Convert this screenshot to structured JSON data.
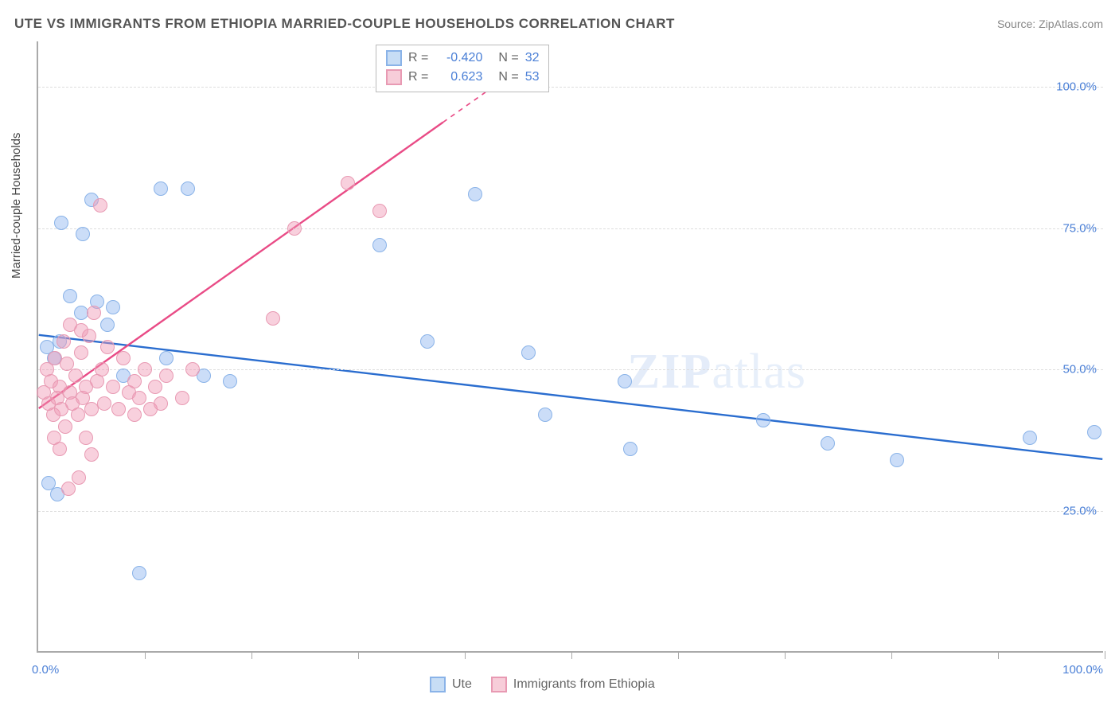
{
  "title": "UTE VS IMMIGRANTS FROM ETHIOPIA MARRIED-COUPLE HOUSEHOLDS CORRELATION CHART",
  "source_label": "Source:",
  "source_name": "ZipAtlas.com",
  "ylabel": "Married-couple Households",
  "watermark": {
    "zip": "ZIP",
    "atlas": "atlas"
  },
  "chart": {
    "type": "scatter-correlation",
    "xlim": [
      0,
      100
    ],
    "ylim": [
      0,
      108
    ],
    "x_ticks_minor": [
      10,
      20,
      30,
      40,
      50,
      60,
      70,
      80,
      90,
      100
    ],
    "y_gridlines": [
      25,
      50,
      75,
      100
    ],
    "y_tick_labels": [
      "25.0%",
      "50.0%",
      "75.0%",
      "100.0%"
    ],
    "x_tick_labels": {
      "left": "0.0%",
      "right": "100.0%"
    },
    "background_color": "#ffffff",
    "grid_color": "#dddddd",
    "axis_color": "#aaaaaa",
    "tick_label_color": "#4a7fd6",
    "series": [
      {
        "name": "Ute",
        "color_fill": "rgba(140,180,240,0.45)",
        "color_stroke": "#8ab3e8",
        "swatch_fill": "#c7ddf5",
        "swatch_border": "#8ab3e8",
        "line_color": "#2a6dcf",
        "line_width": 2.4,
        "R": "-0.420",
        "N": "32",
        "regression": {
          "x1": 0,
          "y1": 56,
          "x2": 100,
          "y2": 34
        },
        "points": [
          {
            "x": 1.0,
            "y": 30
          },
          {
            "x": 1.8,
            "y": 28
          },
          {
            "x": 0.8,
            "y": 54
          },
          {
            "x": 2.2,
            "y": 76
          },
          {
            "x": 4.2,
            "y": 74
          },
          {
            "x": 1.5,
            "y": 52
          },
          {
            "x": 2.0,
            "y": 55
          },
          {
            "x": 3.0,
            "y": 63
          },
          {
            "x": 4.0,
            "y": 60
          },
          {
            "x": 5.5,
            "y": 62
          },
          {
            "x": 6.5,
            "y": 58
          },
          {
            "x": 7.0,
            "y": 61
          },
          {
            "x": 5.0,
            "y": 80
          },
          {
            "x": 11.5,
            "y": 82
          },
          {
            "x": 14.0,
            "y": 82
          },
          {
            "x": 8.0,
            "y": 49
          },
          {
            "x": 12.0,
            "y": 52
          },
          {
            "x": 15.5,
            "y": 49
          },
          {
            "x": 18.0,
            "y": 48
          },
          {
            "x": 9.5,
            "y": 14
          },
          {
            "x": 32.0,
            "y": 72
          },
          {
            "x": 36.5,
            "y": 55
          },
          {
            "x": 41.0,
            "y": 81
          },
          {
            "x": 46.0,
            "y": 53
          },
          {
            "x": 47.5,
            "y": 42
          },
          {
            "x": 55.5,
            "y": 36
          },
          {
            "x": 55.0,
            "y": 48
          },
          {
            "x": 68.0,
            "y": 41
          },
          {
            "x": 74.0,
            "y": 37
          },
          {
            "x": 80.5,
            "y": 34
          },
          {
            "x": 93.0,
            "y": 38
          },
          {
            "x": 99.0,
            "y": 39
          }
        ]
      },
      {
        "name": "Immigrants from Ethiopia",
        "color_fill": "rgba(240,150,180,0.45)",
        "color_stroke": "#e89ab3",
        "swatch_fill": "#f7cdd9",
        "swatch_border": "#e89ab3",
        "line_color": "#e94b86",
        "line_width": 2.4,
        "R": "0.623",
        "N": "53",
        "regression": {
          "x1": 0,
          "y1": 43,
          "x2": 42,
          "y2": 99
        },
        "regression_dashed_from_x": 38,
        "points": [
          {
            "x": 0.5,
            "y": 46
          },
          {
            "x": 0.8,
            "y": 50
          },
          {
            "x": 1.0,
            "y": 44
          },
          {
            "x": 1.2,
            "y": 48
          },
          {
            "x": 1.4,
            "y": 42
          },
          {
            "x": 1.6,
            "y": 52
          },
          {
            "x": 1.8,
            "y": 45
          },
          {
            "x": 2.0,
            "y": 47
          },
          {
            "x": 2.2,
            "y": 43
          },
          {
            "x": 2.4,
            "y": 55
          },
          {
            "x": 2.5,
            "y": 40
          },
          {
            "x": 2.7,
            "y": 51
          },
          {
            "x": 3.0,
            "y": 46
          },
          {
            "x": 3.2,
            "y": 44
          },
          {
            "x": 3.5,
            "y": 49
          },
          {
            "x": 3.7,
            "y": 42
          },
          {
            "x": 4.0,
            "y": 53
          },
          {
            "x": 4.2,
            "y": 45
          },
          {
            "x": 4.5,
            "y": 47
          },
          {
            "x": 4.8,
            "y": 56
          },
          {
            "x": 5.0,
            "y": 43
          },
          {
            "x": 5.2,
            "y": 60
          },
          {
            "x": 5.5,
            "y": 48
          },
          {
            "x": 6.0,
            "y": 50
          },
          {
            "x": 6.2,
            "y": 44
          },
          {
            "x": 6.5,
            "y": 54
          },
          {
            "x": 7.0,
            "y": 47
          },
          {
            "x": 7.5,
            "y": 43
          },
          {
            "x": 8.0,
            "y": 52
          },
          {
            "x": 8.5,
            "y": 46
          },
          {
            "x": 9.0,
            "y": 48
          },
          {
            "x": 9.5,
            "y": 45
          },
          {
            "x": 10.0,
            "y": 50
          },
          {
            "x": 10.5,
            "y": 43
          },
          {
            "x": 11.0,
            "y": 47
          },
          {
            "x": 12.0,
            "y": 49
          },
          {
            "x": 3.0,
            "y": 58
          },
          {
            "x": 4.5,
            "y": 38
          },
          {
            "x": 5.0,
            "y": 35
          },
          {
            "x": 2.0,
            "y": 36
          },
          {
            "x": 3.8,
            "y": 31
          },
          {
            "x": 5.8,
            "y": 79
          },
          {
            "x": 1.5,
            "y": 38
          },
          {
            "x": 2.8,
            "y": 29
          },
          {
            "x": 13.5,
            "y": 45
          },
          {
            "x": 14.5,
            "y": 50
          },
          {
            "x": 9.0,
            "y": 42
          },
          {
            "x": 11.5,
            "y": 44
          },
          {
            "x": 22.0,
            "y": 59
          },
          {
            "x": 24.0,
            "y": 75
          },
          {
            "x": 29.0,
            "y": 83
          },
          {
            "x": 32.0,
            "y": 78
          },
          {
            "x": 4.0,
            "y": 57
          }
        ]
      }
    ],
    "legend_labels": {
      "R": "R =",
      "N": "N ="
    }
  }
}
